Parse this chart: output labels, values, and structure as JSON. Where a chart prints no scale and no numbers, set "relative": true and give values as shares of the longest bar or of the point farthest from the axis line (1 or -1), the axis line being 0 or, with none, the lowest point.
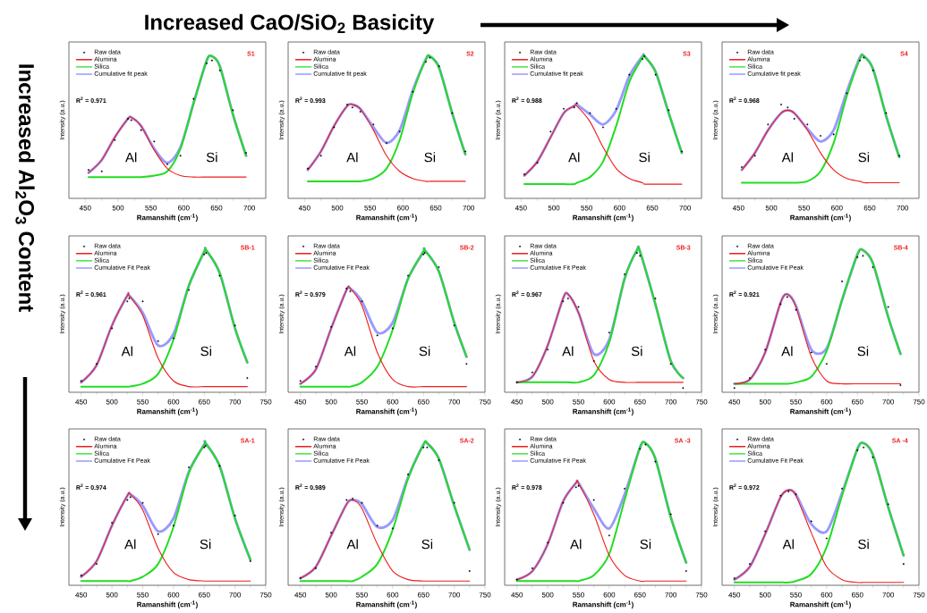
{
  "chart_data": [
    {
      "type": "line",
      "title": "S1",
      "xlabel": "Ramanshift (cm$^{-1}$)",
      "ylabel": "Intensity (a.u.)",
      "relative": true,
      "legend": "top left",
      "xlim": [
        425,
        725
      ],
      "xticks": [
        450,
        500,
        550,
        600,
        650,
        700
      ],
      "x": [
        455,
        475,
        495,
        515,
        520,
        535,
        555,
        575,
        595,
        615,
        635,
        643,
        655,
        675,
        695
      ],
      "series": [
        {
          "name": "Raw data",
          "type": "scatter",
          "color": "#000000",
          "values": [
            0.2,
            0.19,
            0.41,
            0.56,
            0.55,
            0.48,
            0.4,
            0.24,
            0.3,
            0.7,
            0.95,
            0.97,
            0.9,
            0.62,
            0.32
          ]
        },
        {
          "name": "Alumina",
          "color": "#ee1c1c",
          "values": [
            0.18,
            0.27,
            0.43,
            0.56,
            0.57,
            0.51,
            0.34,
            0.21,
            0.16,
            0.15,
            0.15,
            0.15,
            0.15,
            0.15,
            0.15
          ]
        },
        {
          "name": "Silica",
          "color": "#22dd22",
          "values": [
            0.15,
            0.15,
            0.15,
            0.15,
            0.15,
            0.15,
            0.16,
            0.19,
            0.35,
            0.67,
            0.97,
            1.0,
            0.93,
            0.59,
            0.3
          ]
        },
        {
          "name": "Cumulative fit peak",
          "color": "#9999ff",
          "values": [
            0.18,
            0.27,
            0.43,
            0.56,
            0.57,
            0.51,
            0.35,
            0.25,
            0.36,
            0.67,
            0.97,
            1.0,
            0.93,
            0.59,
            0.3
          ]
        }
      ],
      "annotations": [
        "R$^{2}$ = 0.971",
        "Al",
        "Si"
      ]
    },
    {
      "type": "line",
      "title": "S2",
      "xlabel": "Ramanshift (cm$^{-1}$)",
      "ylabel": "Intensity (a.u.)",
      "relative": true,
      "legend": "top left",
      "xlim": [
        425,
        725
      ],
      "xticks": [
        450,
        500,
        550,
        600,
        650,
        700
      ],
      "x": [
        455,
        475,
        495,
        515,
        523,
        535,
        555,
        575,
        595,
        615,
        635,
        641,
        655,
        675,
        695
      ],
      "series": [
        {
          "name": "Raw data",
          "type": "scatter",
          "color": "#000000",
          "values": [
            0.21,
            0.3,
            0.5,
            0.66,
            0.64,
            0.61,
            0.52,
            0.39,
            0.47,
            0.75,
            0.96,
            0.99,
            0.93,
            0.6,
            0.33
          ]
        },
        {
          "name": "Alumina",
          "color": "#ee1c1c",
          "values": [
            0.2,
            0.33,
            0.51,
            0.65,
            0.66,
            0.63,
            0.48,
            0.3,
            0.19,
            0.14,
            0.12,
            0.12,
            0.12,
            0.12,
            0.12
          ]
        },
        {
          "name": "Silica",
          "color": "#22dd22",
          "values": [
            0.12,
            0.12,
            0.12,
            0.12,
            0.12,
            0.12,
            0.14,
            0.21,
            0.41,
            0.74,
            0.98,
            1.0,
            0.92,
            0.6,
            0.31
          ]
        },
        {
          "name": "Cumulative fit peak",
          "color": "#9999ff",
          "values": [
            0.2,
            0.33,
            0.51,
            0.65,
            0.66,
            0.63,
            0.5,
            0.39,
            0.48,
            0.76,
            0.98,
            1.0,
            0.92,
            0.6,
            0.31
          ]
        }
      ],
      "annotations": [
        "R$^{2}$ = 0.993",
        "Al",
        "Si"
      ]
    },
    {
      "type": "line",
      "title": "S3",
      "xlabel": "Ramanshift (cm$^{-1}$)",
      "ylabel": "Intensity (a.u.)",
      "relative": true,
      "legend": "top left",
      "xlim": [
        425,
        725
      ],
      "xticks": [
        450,
        500,
        550,
        600,
        650,
        700
      ],
      "x": [
        455,
        475,
        495,
        515,
        531,
        535,
        555,
        575,
        595,
        615,
        635,
        638,
        655,
        675,
        695
      ],
      "series": [
        {
          "name": "Raw data",
          "type": "scatter",
          "color": "#000000",
          "values": [
            0.17,
            0.25,
            0.47,
            0.63,
            0.64,
            0.67,
            0.6,
            0.5,
            0.63,
            0.87,
            0.98,
            1.0,
            0.87,
            0.62,
            0.33
          ]
        },
        {
          "name": "Alumina",
          "color": "#ee1c1c",
          "values": [
            0.16,
            0.26,
            0.43,
            0.6,
            0.65,
            0.65,
            0.54,
            0.36,
            0.21,
            0.14,
            0.11,
            0.1,
            0.1,
            0.1,
            0.1
          ]
        },
        {
          "name": "Silica",
          "color": "#22dd22",
          "values": [
            0.1,
            0.1,
            0.1,
            0.1,
            0.1,
            0.11,
            0.15,
            0.26,
            0.51,
            0.82,
            0.99,
            1.0,
            0.89,
            0.6,
            0.32
          ]
        },
        {
          "name": "Cumulative fit peak",
          "color": "#9999ff",
          "values": [
            0.16,
            0.26,
            0.43,
            0.6,
            0.65,
            0.66,
            0.59,
            0.52,
            0.62,
            0.86,
            1.0,
            1.0,
            0.89,
            0.6,
            0.32
          ]
        }
      ],
      "annotations": [
        "R$^{2}$ = 0.988",
        "Al",
        "Si"
      ]
    },
    {
      "type": "line",
      "title": "S4",
      "xlabel": "Ramanshift (cm$^{-1}$)",
      "ylabel": "Intensity (a.u.)",
      "relative": true,
      "legend": "top left",
      "xlim": [
        425,
        725
      ],
      "xticks": [
        450,
        500,
        550,
        600,
        650,
        700
      ],
      "x": [
        455,
        475,
        495,
        515,
        525,
        535,
        555,
        575,
        595,
        615,
        635,
        641,
        655,
        675,
        695
      ],
      "series": [
        {
          "name": "Raw data",
          "type": "scatter",
          "color": "#000000",
          "values": [
            0.22,
            0.3,
            0.52,
            0.66,
            0.64,
            0.56,
            0.52,
            0.44,
            0.45,
            0.74,
            0.97,
            0.99,
            0.9,
            0.6,
            0.3
          ]
        },
        {
          "name": "Alumina",
          "color": "#ee1c1c",
          "values": [
            0.2,
            0.32,
            0.48,
            0.6,
            0.62,
            0.6,
            0.48,
            0.32,
            0.2,
            0.14,
            0.12,
            0.11,
            0.11,
            0.11,
            0.11
          ]
        },
        {
          "name": "Silica",
          "color": "#22dd22",
          "values": [
            0.11,
            0.11,
            0.11,
            0.11,
            0.11,
            0.11,
            0.12,
            0.19,
            0.39,
            0.72,
            0.98,
            1.0,
            0.91,
            0.58,
            0.29
          ]
        },
        {
          "name": "Cumulative fit peak",
          "color": "#9999ff",
          "values": [
            0.2,
            0.32,
            0.48,
            0.6,
            0.62,
            0.6,
            0.49,
            0.4,
            0.48,
            0.75,
            0.99,
            1.0,
            0.91,
            0.58,
            0.29
          ]
        }
      ],
      "annotations": [
        "R$^{2}$ = 0.968",
        "Al",
        "Si"
      ]
    },
    {
      "type": "line",
      "title": "SB-1",
      "xlabel": "Ramanshift (cm$^{-1}$)",
      "ylabel": "Intensity (a.u.)",
      "relative": true,
      "legend": "top left",
      "xlim": [
        430,
        750
      ],
      "xticks": [
        450,
        500,
        550,
        600,
        650,
        700,
        750
      ],
      "x": [
        450,
        475,
        500,
        525,
        528,
        550,
        575,
        600,
        625,
        650,
        653,
        675,
        700,
        720
      ],
      "series": [
        {
          "name": "Raw data",
          "type": "scatter",
          "color": "#000000",
          "values": [
            0.08,
            0.2,
            0.45,
            0.64,
            0.66,
            0.64,
            0.36,
            0.38,
            0.72,
            0.97,
            0.98,
            0.82,
            0.47,
            0.1
          ]
        },
        {
          "name": "Alumina",
          "color": "#ee1c1c",
          "values": [
            0.07,
            0.19,
            0.47,
            0.68,
            0.68,
            0.54,
            0.24,
            0.08,
            0.04,
            0.04,
            0.04,
            0.04,
            0.04,
            0.04
          ]
        },
        {
          "name": "Silica",
          "color": "#22dd22",
          "values": [
            0.04,
            0.04,
            0.04,
            0.04,
            0.04,
            0.06,
            0.13,
            0.37,
            0.75,
            0.99,
            1.0,
            0.84,
            0.45,
            0.21
          ]
        },
        {
          "name": "Cumulative Fit Peak",
          "color": "#9999ff",
          "values": [
            0.07,
            0.19,
            0.47,
            0.68,
            0.68,
            0.56,
            0.33,
            0.41,
            0.75,
            0.99,
            1.0,
            0.84,
            0.45,
            0.21
          ]
        }
      ],
      "annotations": [
        "R$^{2}$ = 0.961",
        "Al",
        "Si"
      ]
    },
    {
      "type": "line",
      "title": "SB-2",
      "xlabel": "Ramanshift (cm$^{-1}$)",
      "ylabel": "Intensity (a.u.)",
      "relative": true,
      "legend": "top left",
      "xlim": [
        430,
        750
      ],
      "xticks": [
        450,
        500,
        550,
        600,
        650,
        700,
        750
      ],
      "x": [
        450,
        475,
        500,
        525,
        531,
        550,
        575,
        600,
        625,
        650,
        652,
        675,
        700,
        720
      ],
      "series": [
        {
          "name": "Raw data",
          "type": "scatter",
          "color": "#000000",
          "values": [
            0.08,
            0.18,
            0.46,
            0.73,
            0.71,
            0.64,
            0.4,
            0.45,
            0.82,
            0.97,
            0.98,
            0.88,
            0.47,
            0.2
          ]
        },
        {
          "name": "Alumina",
          "color": "#ee1c1c",
          "values": [
            0.06,
            0.16,
            0.45,
            0.72,
            0.73,
            0.61,
            0.28,
            0.09,
            0.04,
            0.04,
            0.04,
            0.04,
            0.04,
            0.04
          ]
        },
        {
          "name": "Silica",
          "color": "#22dd22",
          "values": [
            0.04,
            0.04,
            0.04,
            0.04,
            0.04,
            0.07,
            0.18,
            0.44,
            0.8,
            0.99,
            1.0,
            0.85,
            0.49,
            0.25
          ]
        },
        {
          "name": "Cumulative Fit Peak",
          "color": "#9999ff",
          "values": [
            0.06,
            0.16,
            0.45,
            0.72,
            0.73,
            0.64,
            0.42,
            0.49,
            0.8,
            0.99,
            1.0,
            0.85,
            0.49,
            0.25
          ]
        }
      ],
      "annotations": [
        "R$^{2}$ = 0.979",
        "Al",
        "Si"
      ]
    },
    {
      "type": "line",
      "title": "SB-3",
      "xlabel": "Ramanshift (cm$^{-1}$)",
      "ylabel": "Intensity (a.u.)",
      "relative": true,
      "legend": "top left",
      "xlim": [
        430,
        750
      ],
      "xticks": [
        450,
        500,
        550,
        600,
        650,
        700,
        750
      ],
      "x": [
        450,
        475,
        500,
        525,
        533,
        550,
        575,
        600,
        625,
        645,
        650,
        675,
        700,
        720
      ],
      "series": [
        {
          "name": "Raw data",
          "type": "scatter",
          "color": "#000000",
          "values": [
            0.07,
            0.14,
            0.3,
            0.64,
            0.66,
            0.6,
            0.22,
            0.42,
            0.83,
            0.98,
            0.96,
            0.66,
            0.2,
            0.03
          ]
        },
        {
          "name": "Alumina",
          "color": "#ee1c1c",
          "values": [
            0.07,
            0.11,
            0.33,
            0.66,
            0.69,
            0.56,
            0.22,
            0.09,
            0.07,
            0.07,
            0.07,
            0.07,
            0.07,
            0.07
          ]
        },
        {
          "name": "Silica",
          "color": "#22dd22",
          "values": [
            0.07,
            0.07,
            0.07,
            0.07,
            0.07,
            0.07,
            0.12,
            0.35,
            0.8,
            1.0,
            0.99,
            0.62,
            0.22,
            0.1
          ]
        },
        {
          "name": "Cumulative Fit Peak",
          "color": "#9999ff",
          "values": [
            0.07,
            0.11,
            0.33,
            0.66,
            0.69,
            0.56,
            0.27,
            0.37,
            0.8,
            1.0,
            0.99,
            0.62,
            0.22,
            0.1
          ]
        }
      ],
      "annotations": [
        "R$^{2}$ = 0.967",
        "Al",
        "Si"
      ]
    },
    {
      "type": "line",
      "title": "SB-4",
      "xlabel": "Ramanshift (cm$^{-1}$)",
      "ylabel": "Intensity (a.u.)",
      "relative": true,
      "legend": "top left",
      "xlim": [
        430,
        750
      ],
      "xticks": [
        450,
        500,
        550,
        600,
        650,
        700,
        750
      ],
      "x": [
        450,
        475,
        500,
        525,
        536,
        550,
        575,
        600,
        625,
        650,
        659,
        675,
        700,
        720
      ],
      "series": [
        {
          "name": "Raw data",
          "type": "scatter",
          "color": "#000000",
          "values": [
            0.03,
            0.1,
            0.3,
            0.62,
            0.67,
            0.58,
            0.28,
            0.2,
            0.78,
            0.95,
            0.96,
            0.88,
            0.6,
            0.05
          ]
        },
        {
          "name": "Alumina",
          "color": "#ee1c1c",
          "values": [
            0.06,
            0.09,
            0.28,
            0.63,
            0.69,
            0.6,
            0.25,
            0.08,
            0.06,
            0.06,
            0.06,
            0.06,
            0.06,
            0.06
          ]
        },
        {
          "name": "Silica",
          "color": "#22dd22",
          "values": [
            0.06,
            0.06,
            0.06,
            0.06,
            0.06,
            0.07,
            0.11,
            0.29,
            0.65,
            0.97,
            1.0,
            0.91,
            0.53,
            0.27
          ]
        },
        {
          "name": "Cumulative Fit Peak",
          "color": "#9999ff",
          "values": [
            0.06,
            0.09,
            0.28,
            0.63,
            0.69,
            0.61,
            0.3,
            0.31,
            0.65,
            0.97,
            1.0,
            0.91,
            0.53,
            0.27
          ]
        }
      ],
      "annotations": [
        "R$^{2}$ = 0.921",
        "Al",
        "Si"
      ]
    },
    {
      "type": "line",
      "title": "SA-1",
      "xlabel": "Ramanshift (cm$^{-1}$)",
      "ylabel": "Intensity (a.u.)",
      "relative": true,
      "legend": "top left",
      "xlim": [
        430,
        750
      ],
      "xticks": [
        450,
        500,
        550,
        600,
        650,
        700,
        750
      ],
      "x": [
        450,
        475,
        500,
        525,
        530,
        550,
        575,
        600,
        625,
        650,
        652,
        675,
        700,
        725
      ],
      "series": [
        {
          "name": "Raw data",
          "type": "scatter",
          "color": "#000000",
          "values": [
            0.07,
            0.15,
            0.44,
            0.6,
            0.62,
            0.58,
            0.36,
            0.42,
            0.83,
            0.97,
            0.98,
            0.84,
            0.49,
            0.17
          ]
        },
        {
          "name": "Alumina",
          "color": "#ee1c1c",
          "values": [
            0.06,
            0.17,
            0.42,
            0.63,
            0.64,
            0.53,
            0.26,
            0.09,
            0.04,
            0.03,
            0.03,
            0.03,
            0.03,
            0.03
          ]
        },
        {
          "name": "Silica",
          "color": "#22dd22",
          "values": [
            0.03,
            0.03,
            0.03,
            0.03,
            0.03,
            0.06,
            0.15,
            0.41,
            0.79,
            0.99,
            1.0,
            0.84,
            0.47,
            0.18
          ]
        },
        {
          "name": "Cumulative Fit Peak",
          "color": "#9999ff",
          "values": [
            0.06,
            0.17,
            0.42,
            0.63,
            0.64,
            0.56,
            0.38,
            0.47,
            0.8,
            0.99,
            1.0,
            0.84,
            0.47,
            0.18
          ]
        }
      ],
      "annotations": [
        "R$^{2}$ = 0.974",
        "Al",
        "Si"
      ]
    },
    {
      "type": "line",
      "title": "SA-2",
      "xlabel": "Ramanshift (cm$^{-1}$)",
      "ylabel": "Intensity (a.u.)",
      "relative": true,
      "legend": "top left",
      "xlim": [
        430,
        750
      ],
      "xticks": [
        450,
        500,
        550,
        600,
        650,
        700,
        750
      ],
      "x": [
        450,
        475,
        500,
        525,
        535,
        550,
        575,
        600,
        625,
        650,
        656,
        675,
        700,
        725
      ],
      "series": [
        {
          "name": "Raw data",
          "type": "scatter",
          "color": "#000000",
          "values": [
            0.05,
            0.12,
            0.37,
            0.6,
            0.61,
            0.58,
            0.42,
            0.4,
            0.78,
            0.97,
            0.97,
            0.88,
            0.58,
            0.1
          ]
        },
        {
          "name": "Alumina",
          "color": "#ee1c1c",
          "values": [
            0.05,
            0.13,
            0.35,
            0.57,
            0.6,
            0.54,
            0.29,
            0.1,
            0.04,
            0.03,
            0.03,
            0.03,
            0.03,
            0.03
          ]
        },
        {
          "name": "Silica",
          "color": "#22dd22",
          "values": [
            0.03,
            0.03,
            0.03,
            0.03,
            0.03,
            0.06,
            0.15,
            0.39,
            0.75,
            0.99,
            1.0,
            0.89,
            0.56,
            0.25
          ]
        },
        {
          "name": "Cumulative Fit Peak",
          "color": "#9999ff",
          "values": [
            0.05,
            0.13,
            0.35,
            0.57,
            0.6,
            0.57,
            0.41,
            0.46,
            0.76,
            0.99,
            1.0,
            0.89,
            0.56,
            0.25
          ]
        }
      ],
      "annotations": [
        "R$^{2}$ = 0.989",
        "Al",
        "Si"
      ]
    },
    {
      "type": "line",
      "title": "SA -3",
      "xlabel": "Ramanshift (cm$^{-1}$)",
      "ylabel": "Intensity (a.u.)",
      "relative": true,
      "legend": "top left",
      "xlim": [
        430,
        750
      ],
      "xticks": [
        450,
        500,
        550,
        600,
        650,
        700,
        750
      ],
      "x": [
        450,
        475,
        500,
        525,
        546,
        550,
        575,
        600,
        625,
        650,
        659,
        675,
        700,
        725
      ],
      "series": [
        {
          "name": "Raw data",
          "type": "scatter",
          "color": "#000000",
          "values": [
            0.04,
            0.12,
            0.3,
            0.58,
            0.69,
            0.7,
            0.6,
            0.35,
            0.68,
            0.96,
            0.99,
            0.87,
            0.5,
            0.1
          ]
        },
        {
          "name": "Alumina",
          "color": "#ee1c1c",
          "values": [
            0.04,
            0.1,
            0.29,
            0.59,
            0.72,
            0.72,
            0.5,
            0.21,
            0.07,
            0.03,
            0.03,
            0.03,
            0.03,
            0.03
          ]
        },
        {
          "name": "Silica",
          "color": "#22dd22",
          "values": [
            0.03,
            0.03,
            0.03,
            0.03,
            0.03,
            0.03,
            0.07,
            0.22,
            0.6,
            0.97,
            1.0,
            0.89,
            0.48,
            0.16
          ]
        },
        {
          "name": "Cumulative Fit Peak",
          "color": "#9999ff",
          "values": [
            0.04,
            0.1,
            0.29,
            0.59,
            0.72,
            0.72,
            0.54,
            0.4,
            0.64,
            0.97,
            1.0,
            0.89,
            0.48,
            0.16
          ]
        }
      ],
      "annotations": [
        "R$^{2}$ = 0.978",
        "Al",
        "Si"
      ]
    },
    {
      "type": "line",
      "title": "SA -4",
      "xlabel": "Ramanshift (cm$^{-1}$)",
      "ylabel": "Intensity (a.u.)",
      "relative": true,
      "legend": "top left",
      "xlim": [
        430,
        750
      ],
      "xticks": [
        450,
        500,
        550,
        600,
        650,
        700,
        750
      ],
      "x": [
        450,
        475,
        500,
        525,
        538,
        550,
        575,
        600,
        625,
        650,
        660,
        675,
        700,
        725
      ],
      "series": [
        {
          "name": "Raw data",
          "type": "scatter",
          "color": "#000000",
          "values": [
            0.05,
            0.15,
            0.38,
            0.63,
            0.66,
            0.64,
            0.45,
            0.33,
            0.68,
            0.95,
            0.97,
            0.9,
            0.57,
            0.15
          ]
        },
        {
          "name": "Alumina",
          "color": "#ee1c1c",
          "values": [
            0.04,
            0.13,
            0.36,
            0.62,
            0.67,
            0.63,
            0.37,
            0.13,
            0.04,
            0.02,
            0.02,
            0.02,
            0.02,
            0.02
          ]
        },
        {
          "name": "Silica",
          "color": "#22dd22",
          "values": [
            0.02,
            0.02,
            0.02,
            0.02,
            0.02,
            0.03,
            0.08,
            0.27,
            0.63,
            0.96,
            1.0,
            0.92,
            0.55,
            0.21
          ]
        },
        {
          "name": "Cumulative Fit Peak",
          "color": "#9999ff",
          "values": [
            0.04,
            0.13,
            0.36,
            0.62,
            0.67,
            0.64,
            0.43,
            0.38,
            0.65,
            0.96,
            1.0,
            0.92,
            0.55,
            0.21
          ]
        }
      ],
      "annotations": [
        "R$^{2}$ = 0.972",
        "Al",
        "Si"
      ]
    },
    {
      "type": "other",
      "annotations": [
        "Increased CaO/SiO$_{2}$ Basicity",
        "Increased Al$_{2}$O$_{3}$ Content"
      ]
    }
  ]
}
